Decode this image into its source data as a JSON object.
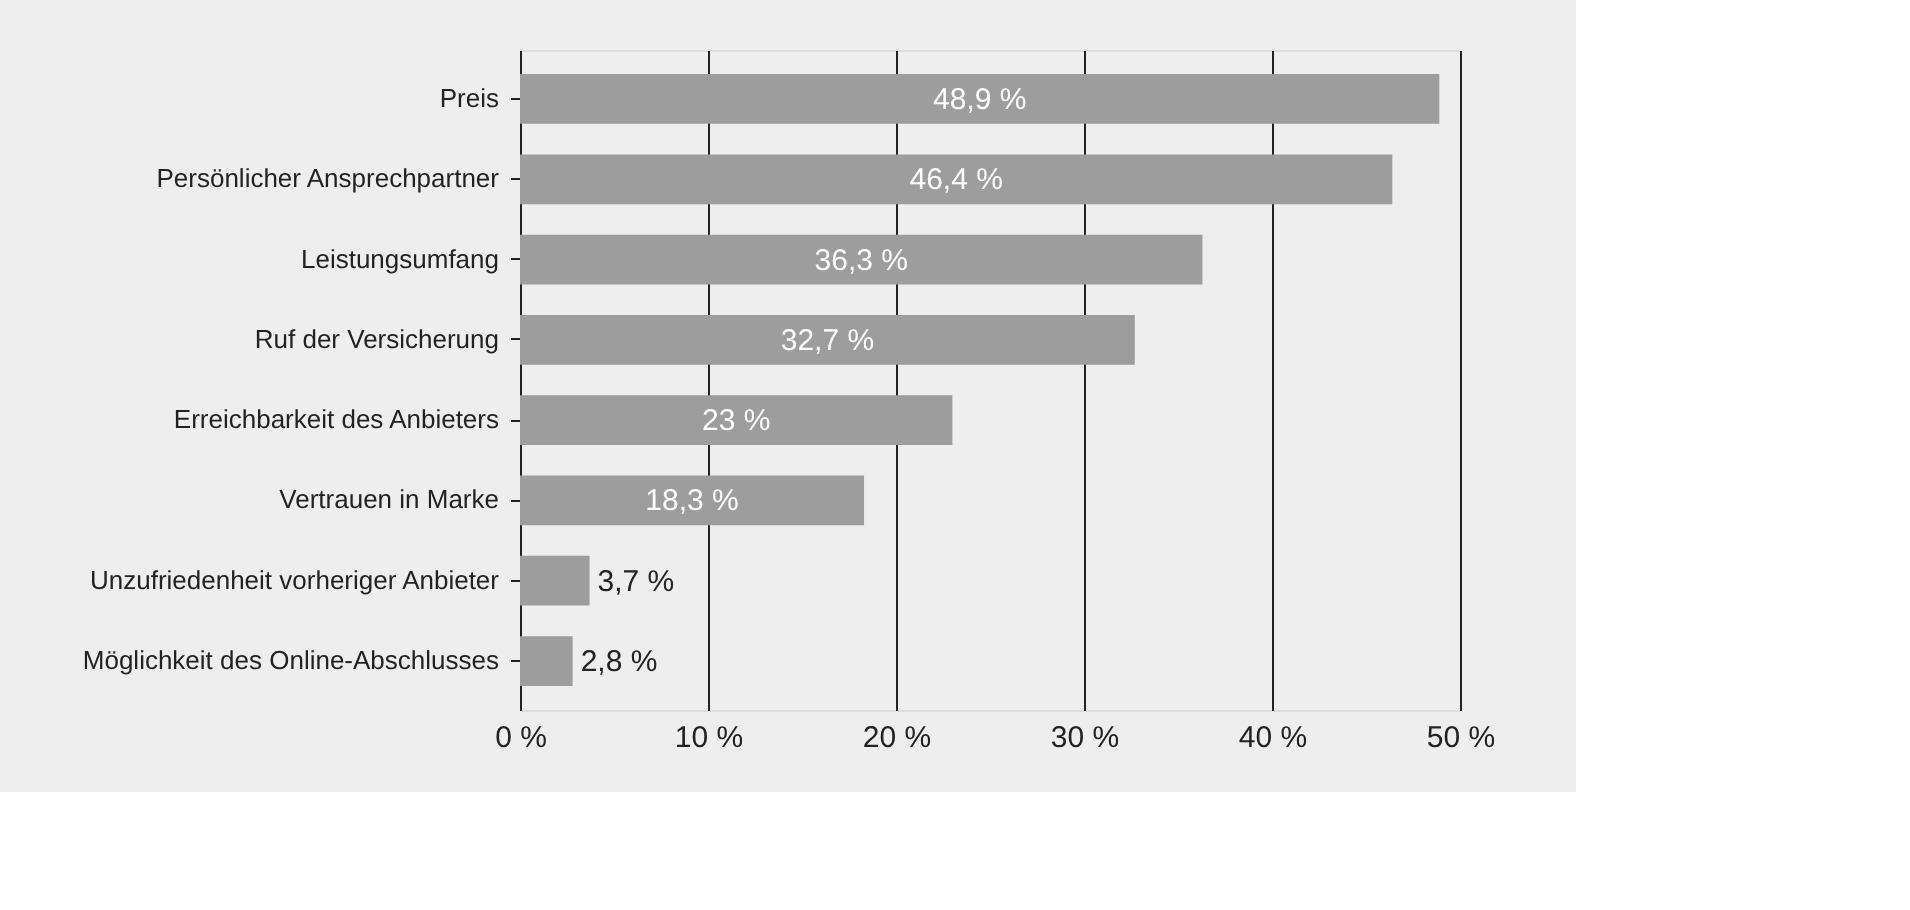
{
  "chart_data": {
    "type": "bar",
    "orientation": "horizontal",
    "categories": [
      "Preis",
      "Persönlicher Ansprechpartner",
      "Leistungsumfang",
      "Ruf der Versicherung",
      "Erreichbarkeit des Anbieters",
      "Vertrauen in Marke",
      "Unzufriedenheit vorheriger Anbieter",
      "Möglichkeit des Online-Abschlusses"
    ],
    "values": [
      48.9,
      46.4,
      36.3,
      32.7,
      23,
      18.3,
      3.7,
      2.8
    ],
    "value_labels": [
      "48,9 %",
      "46,4 %",
      "36,3 %",
      "32,7 %",
      "23 %",
      "18,3 %",
      "3,7 %",
      "2,8 %"
    ],
    "color": "#9d9d9d",
    "xlim": [
      0,
      50
    ],
    "xticks": [
      {
        "value": 0,
        "label": "0 %"
      },
      {
        "value": 10,
        "label": "10 %"
      },
      {
        "value": 20,
        "label": "20 %"
      },
      {
        "value": 30,
        "label": "30 %"
      },
      {
        "value": 40,
        "label": "40 %"
      },
      {
        "value": 50,
        "label": "50 %"
      }
    ],
    "grid": "x"
  }
}
